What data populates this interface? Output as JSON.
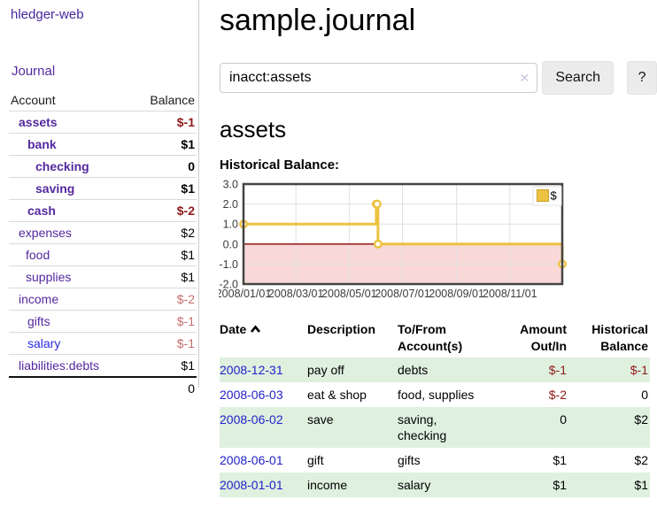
{
  "app": {
    "brand": "hledger-web",
    "nav": {
      "journal": "Journal"
    }
  },
  "sidebar": {
    "header": {
      "account": "Account",
      "balance": "Balance"
    },
    "rows": [
      {
        "label": "assets",
        "balance": "$-1",
        "level": 1
      },
      {
        "label": "bank",
        "balance": "$1",
        "level": 2
      },
      {
        "label": "checking",
        "balance": "0",
        "level": 3
      },
      {
        "label": "saving",
        "balance": "$1",
        "level": 3
      },
      {
        "label": "cash",
        "balance": "$-2",
        "level": 2
      },
      {
        "label": "expenses",
        "balance": "$2",
        "level": 1
      },
      {
        "label": "food",
        "balance": "$1",
        "level": 2
      },
      {
        "label": "supplies",
        "balance": "$1",
        "level": 2
      },
      {
        "label": "income",
        "balance": "$-2",
        "level": 1
      },
      {
        "label": "gifts",
        "balance": "$-1",
        "level": 2
      },
      {
        "label": "salary",
        "balance": "$-1",
        "level": 2
      },
      {
        "label": "liabilities:debts",
        "balance": "$1",
        "level": 1
      }
    ],
    "total": "0"
  },
  "main": {
    "title": "sample.journal",
    "search": {
      "value": "inacct:assets",
      "clear_icon": "✕",
      "search_button": "Search",
      "help_button": "?"
    },
    "account_heading": "assets",
    "chart_heading": "Historical Balance:"
  },
  "chart_data": {
    "type": "line",
    "step": true,
    "series": [
      {
        "name": "$",
        "x": [
          "2008-01-01",
          "2008-06-01",
          "2008-06-02",
          "2008-06-03",
          "2008-12-31"
        ],
        "values": [
          1,
          2,
          2,
          0,
          -1
        ]
      }
    ],
    "xrange": [
      "2008-01-01",
      "2008-12-31"
    ],
    "ylim": [
      -2,
      3
    ],
    "yticks": [
      3,
      2,
      1,
      0,
      -1,
      -2
    ],
    "ytick_labels": [
      "3.0",
      "2.0",
      "1.0",
      "0.0",
      "-1.0",
      "-2.0"
    ],
    "xticks": [
      "2008-01-01",
      "2008-03-01",
      "2008-05-01",
      "2008-07-01",
      "2008-09-01",
      "2008-11-01"
    ],
    "xtick_labels": [
      "2008/01/01",
      "2008/03/01",
      "2008/05/01",
      "2008/07/01",
      "2008/09/01",
      "2008/11/01"
    ],
    "legend": {
      "position": "top-right",
      "label": "$"
    },
    "grid": true,
    "colors": {
      "line": "#edc240",
      "marker_fill": "#ffffff",
      "negative_region": "#f9d8d8",
      "zero_line": "#8b0000",
      "gridline": "#e0e0e0",
      "border": "#444444",
      "tick_text": "#3c3c3c",
      "legend_swatch": "#edc240"
    }
  },
  "register": {
    "headers": [
      {
        "label": "Date",
        "sorted": "asc"
      },
      {
        "label": "Description"
      },
      {
        "label": "To/From\nAccount(s)"
      },
      {
        "label": "Amount\nOut/In"
      },
      {
        "label": "Historical\nBalance"
      }
    ],
    "rows": [
      {
        "date": "2008-12-31",
        "description": "pay off",
        "accounts": "debts",
        "amount": "$-1",
        "balance": "$-1"
      },
      {
        "date": "2008-06-03",
        "description": "eat & shop",
        "accounts": "food, supplies",
        "amount": "$-2",
        "balance": "0"
      },
      {
        "date": "2008-06-02",
        "description": "save",
        "accounts": "saving,\nchecking",
        "amount": "0",
        "balance": "$2"
      },
      {
        "date": "2008-06-01",
        "description": "gift",
        "accounts": "gifts",
        "amount": "$1",
        "balance": "$2"
      },
      {
        "date": "2008-01-01",
        "description": "income",
        "accounts": "salary",
        "amount": "$1",
        "balance": "$1"
      }
    ]
  }
}
